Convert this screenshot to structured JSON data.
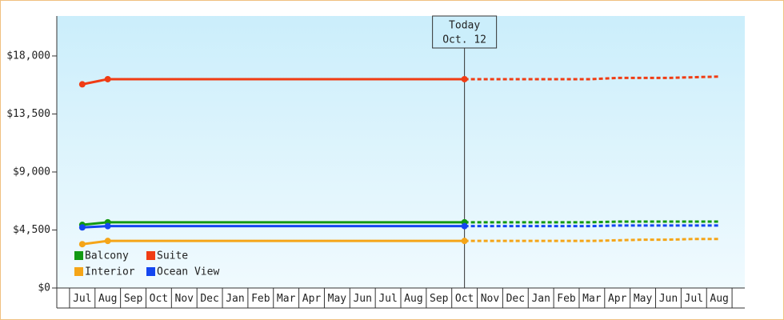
{
  "chart_data": {
    "type": "line",
    "annotation": [
      "Today",
      "Oct. 12"
    ],
    "categories": [
      "Jul",
      "Aug",
      "Sep",
      "Oct",
      "Nov",
      "Dec",
      "Jan",
      "Feb",
      "Mar",
      "Apr",
      "May",
      "Jun",
      "Jul",
      "Aug",
      "Sep",
      "Oct",
      "Nov",
      "Dec",
      "Jan",
      "Feb",
      "Mar",
      "Apr",
      "May",
      "Jun",
      "Jul",
      "Aug"
    ],
    "ylim": [
      0,
      21100
    ],
    "yticks": [
      {
        "value": 0,
        "label": "$0"
      },
      {
        "value": 4500,
        "label": "$4,500"
      },
      {
        "value": 9000,
        "label": "$9,000"
      },
      {
        "value": 13500,
        "label": "$13,500"
      },
      {
        "value": 18000,
        "label": "$18,000"
      }
    ],
    "legend": "lower left",
    "series": [
      {
        "name": "Balcony",
        "color": "#129912",
        "values": [
          4900,
          5100,
          5100,
          5100,
          5100,
          5100,
          5100,
          5100,
          5100,
          5100,
          5100,
          5100,
          5100,
          5100,
          5100,
          5100,
          null,
          null,
          null,
          null,
          null,
          null,
          null,
          null,
          null,
          null
        ],
        "forecast": [
          null,
          null,
          null,
          null,
          null,
          null,
          null,
          null,
          null,
          null,
          null,
          null,
          null,
          null,
          null,
          5100,
          5100,
          5100,
          5100,
          5100,
          5100,
          5150,
          5150,
          5150,
          5150,
          5150
        ]
      },
      {
        "name": "Suite",
        "color": "#f03c14",
        "values": [
          15800,
          16200,
          16200,
          16200,
          16200,
          16200,
          16200,
          16200,
          16200,
          16200,
          16200,
          16200,
          16200,
          16200,
          16200,
          16200,
          null,
          null,
          null,
          null,
          null,
          null,
          null,
          null,
          null,
          null
        ],
        "forecast": [
          null,
          null,
          null,
          null,
          null,
          null,
          null,
          null,
          null,
          null,
          null,
          null,
          null,
          null,
          null,
          16200,
          16200,
          16200,
          16200,
          16200,
          16200,
          16300,
          16300,
          16300,
          16350,
          16400
        ]
      },
      {
        "name": "Interior",
        "color": "#f5a518",
        "values": [
          3400,
          3650,
          3650,
          3650,
          3650,
          3650,
          3650,
          3650,
          3650,
          3650,
          3650,
          3650,
          3650,
          3650,
          3650,
          3650,
          null,
          null,
          null,
          null,
          null,
          null,
          null,
          null,
          null,
          null
        ],
        "forecast": [
          null,
          null,
          null,
          null,
          null,
          null,
          null,
          null,
          null,
          null,
          null,
          null,
          null,
          null,
          null,
          3650,
          3650,
          3650,
          3650,
          3650,
          3650,
          3700,
          3750,
          3750,
          3800,
          3800
        ]
      },
      {
        "name": "Ocean View",
        "color": "#1446f0",
        "values": [
          4700,
          4800,
          4800,
          4800,
          4800,
          4800,
          4800,
          4800,
          4800,
          4800,
          4800,
          4800,
          4800,
          4800,
          4800,
          4800,
          null,
          null,
          null,
          null,
          null,
          null,
          null,
          null,
          null,
          null
        ],
        "forecast": [
          null,
          null,
          null,
          null,
          null,
          null,
          null,
          null,
          null,
          null,
          null,
          null,
          null,
          null,
          null,
          4800,
          4800,
          4800,
          4800,
          4800,
          4800,
          4850,
          4850,
          4850,
          4850,
          4850
        ]
      }
    ]
  }
}
